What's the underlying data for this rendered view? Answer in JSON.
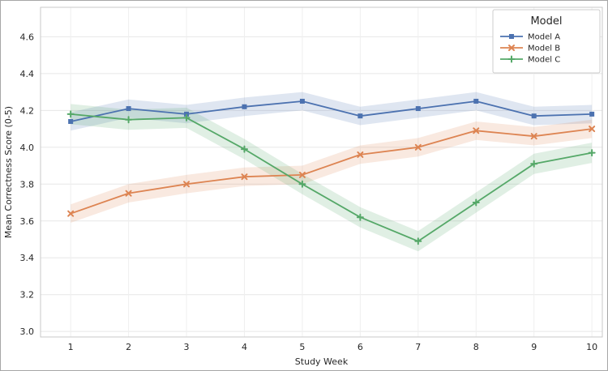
{
  "figure": {
    "xlabel": "Study Week",
    "ylabel": "Mean Correctness Score (0-5)",
    "legend_title": "Model"
  },
  "chart_data": {
    "type": "line",
    "title": "",
    "xlabel": "Study Week",
    "ylabel": "Mean Correctness Score (0-5)",
    "legend_title": "Model",
    "legend_position": "upper right",
    "grid": true,
    "x": [
      1,
      2,
      3,
      4,
      5,
      6,
      7,
      8,
      9,
      10
    ],
    "x_tick_labels": [
      "1",
      "2",
      "3",
      "4",
      "5",
      "6",
      "7",
      "8",
      "9",
      "10"
    ],
    "y_ticks": [
      3.0,
      3.2,
      3.4,
      3.6,
      3.8,
      4.0,
      4.2,
      4.4,
      4.6
    ],
    "y_tick_labels": [
      "3.0",
      "3.2",
      "3.4",
      "3.6",
      "3.8",
      "4.0",
      "4.2",
      "4.4",
      "4.6"
    ],
    "xlim": [
      0.48,
      10.18
    ],
    "ylim": [
      2.97,
      4.76
    ],
    "series": [
      {
        "name": "Model A",
        "color": "#4C72B0",
        "marker": "square",
        "band": 0.05,
        "values": [
          4.14,
          4.21,
          4.18,
          4.22,
          4.25,
          4.17,
          4.21,
          4.25,
          4.17,
          4.18
        ]
      },
      {
        "name": "Model B",
        "color": "#DD8452",
        "marker": "x",
        "band": 0.05,
        "values": [
          3.64,
          3.75,
          3.8,
          3.84,
          3.85,
          3.96,
          4.0,
          4.09,
          4.06,
          4.1
        ]
      },
      {
        "name": "Model C",
        "color": "#55A868",
        "marker": "plus",
        "band": 0.055,
        "values": [
          4.18,
          4.15,
          4.16,
          3.99,
          3.8,
          3.62,
          3.49,
          3.7,
          3.91,
          3.97
        ]
      }
    ]
  }
}
